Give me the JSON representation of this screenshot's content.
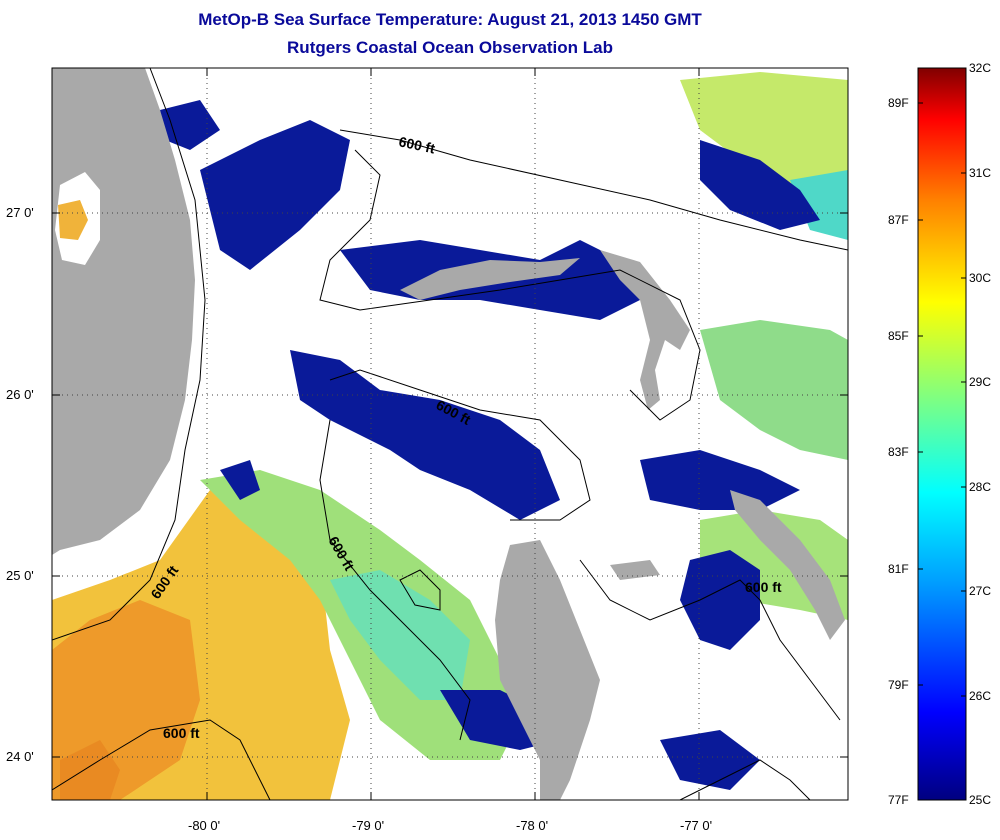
{
  "header": {
    "title": "MetOp-B Sea Surface Temperature:  August 21, 2013 1450 GMT",
    "subtitle": "Rutgers Coastal Ocean Observation Lab"
  },
  "map": {
    "lat_labels": [
      "27 0'",
      "26 0'",
      "25 0'",
      "24 0'"
    ],
    "lon_labels": [
      "-80 0'",
      "-79 0'",
      "-78 0'",
      "-77 0'"
    ],
    "contour_labels": [
      "600 ft",
      "600 ft",
      "600 ft",
      "600 ft",
      "600 ft",
      "600 ft"
    ],
    "colors": {
      "land": "#a9a9a9",
      "cloud": "#ffffff",
      "cool_water": "#0a1a99",
      "mid_water": "#7fd98a",
      "warm_water": "#f0c43a",
      "hot_water": "#ee9a2a"
    }
  },
  "colorbar": {
    "celsius_labels": [
      "32C",
      "31C",
      "30C",
      "29C",
      "28C",
      "27C",
      "26C",
      "25C"
    ],
    "fahrenheit_labels": [
      "89F",
      "87F",
      "85F",
      "83F",
      "81F",
      "79F",
      "77F"
    ],
    "range_c": [
      25,
      32
    ],
    "colors": [
      "#000080",
      "#0000ff",
      "#00a0ff",
      "#00ffff",
      "#80ff80",
      "#ffff00",
      "#ff8000",
      "#ff0000",
      "#800000"
    ]
  }
}
